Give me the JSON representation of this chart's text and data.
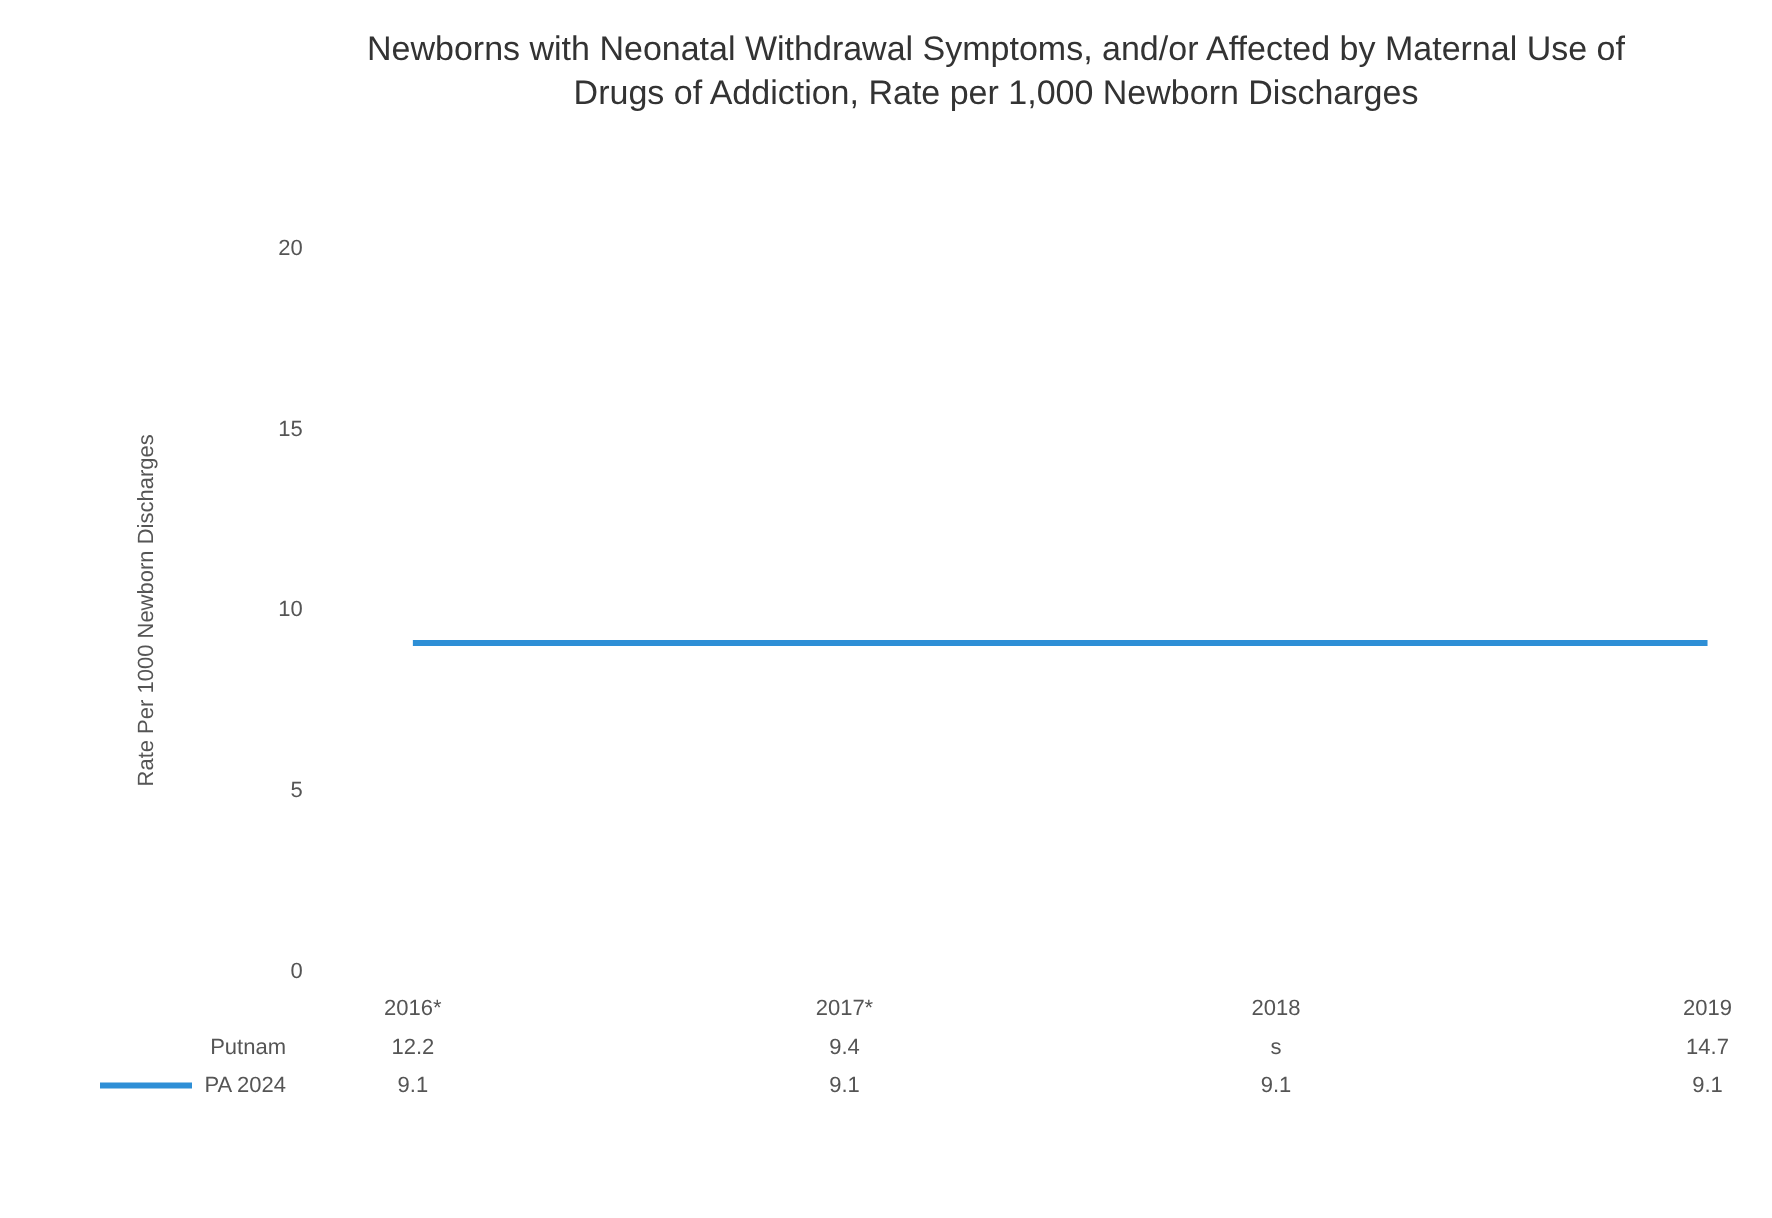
{
  "chart_data": {
    "type": "line",
    "title": "Newborns with Neonatal Withdrawal Symptoms, and/or Affected by Maternal Use of Drugs of Addiction, Rate per 1,000 Newborn Discharges",
    "ylabel": "Rate Per 1000 Newborn Discharges",
    "categories": [
      "2016*",
      "2017*",
      "2018",
      "2019"
    ],
    "series": [
      {
        "name": "Putnam",
        "values": [
          null,
          null,
          null,
          null
        ],
        "value_labels": [
          "12.2",
          "9.4",
          "s",
          "14.7"
        ]
      },
      {
        "name": "PA 2024",
        "color": "#2e8fd6",
        "values": [
          9.1,
          9.1,
          9.1,
          9.1
        ]
      }
    ],
    "ylim": [
      0,
      20
    ],
    "yticks": [
      0,
      5,
      10,
      15,
      20
    ],
    "grid": false,
    "legend": "bottom",
    "data_labels": true,
    "marker": "none",
    "line_style": "solid"
  }
}
